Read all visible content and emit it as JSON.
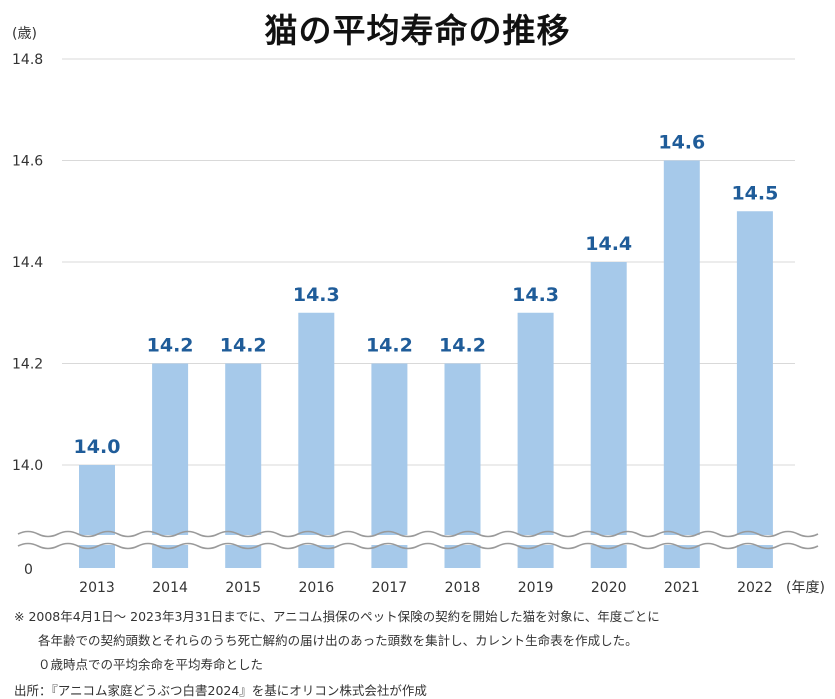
{
  "chart_data": {
    "type": "bar",
    "title": "猫の平均寿命の推移",
    "ylabel": "(歳)",
    "xlabel": "(年度)",
    "categories": [
      "2013",
      "2014",
      "2015",
      "2016",
      "2017",
      "2018",
      "2019",
      "2020",
      "2021",
      "2022"
    ],
    "values": [
      14.0,
      14.2,
      14.2,
      14.3,
      14.2,
      14.2,
      14.3,
      14.4,
      14.6,
      14.5
    ],
    "value_labels": [
      "14.0",
      "14.2",
      "14.2",
      "14.3",
      "14.2",
      "14.2",
      "14.3",
      "14.4",
      "14.6",
      "14.5"
    ],
    "ylim": [
      14.0,
      14.8
    ],
    "y_ticks": [
      "14.8",
      "14.6",
      "14.4",
      "14.2",
      "14.0"
    ],
    "y_tick_values": [
      14.8,
      14.6,
      14.4,
      14.2,
      14.0
    ],
    "y_break": true,
    "y_zero_label": "0",
    "grid": true,
    "colors": {
      "bar": "#a6c9ea",
      "label": "#1f5c99",
      "grid": "#d9d9d9"
    }
  },
  "notes": {
    "line1": "※ 2008年4月1日～ 2023年3月31日までに、アニコム損保のペット保険の契約を開始した猫を対象に、年度ごとに",
    "line2": "各年齢での契約頭数とそれらのうち死亡解約の届け出のあった頭数を集計し、カレント生命表を作成した。",
    "line3": "０歳時点での平均余命を平均寿命とした",
    "source": "出所：『アニコム家庭どうぶつ白書2024』を基にオリコン株式会社が作成"
  }
}
